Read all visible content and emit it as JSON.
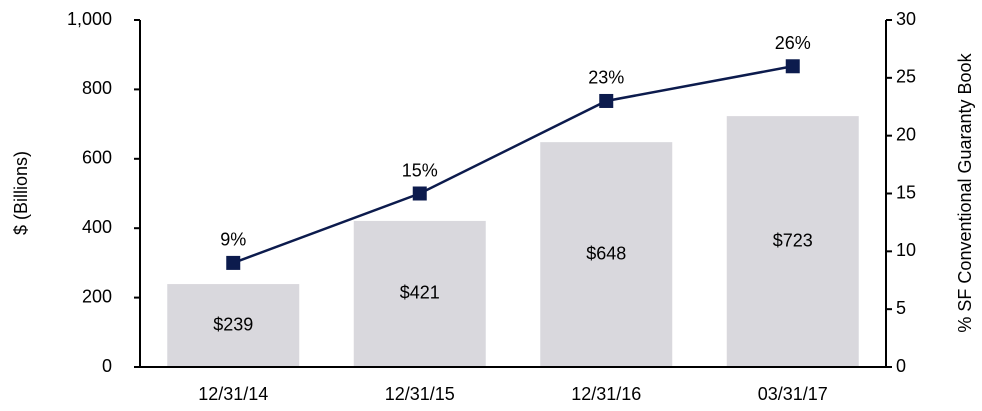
{
  "chart_data": {
    "type": "bar",
    "categories": [
      "12/31/14",
      "12/31/15",
      "12/31/16",
      "03/31/17"
    ],
    "y_label": "$ (Billions)",
    "y2_label": "% SF Conventional Guaranty Book",
    "ylim": [
      0,
      1000
    ],
    "yticks": [
      0,
      200,
      400,
      600,
      800,
      {
        "value": 1000,
        "label": "1,000"
      }
    ],
    "y2lim": [
      0,
      30
    ],
    "y2ticks": [
      0,
      5,
      10,
      15,
      20,
      25,
      30
    ],
    "series": [
      {
        "type": "bar",
        "color": "#d9d8dd",
        "values": [
          239,
          421,
          648,
          723
        ],
        "value_labels": [
          "$239",
          "$421",
          "$648",
          "$723"
        ]
      },
      {
        "type": "line",
        "axis": "y2",
        "color": "#0c1b4d",
        "values": [
          9,
          15,
          23,
          26
        ],
        "value_labels": [
          "9%",
          "15%",
          "23%",
          "26%"
        ]
      }
    ]
  }
}
